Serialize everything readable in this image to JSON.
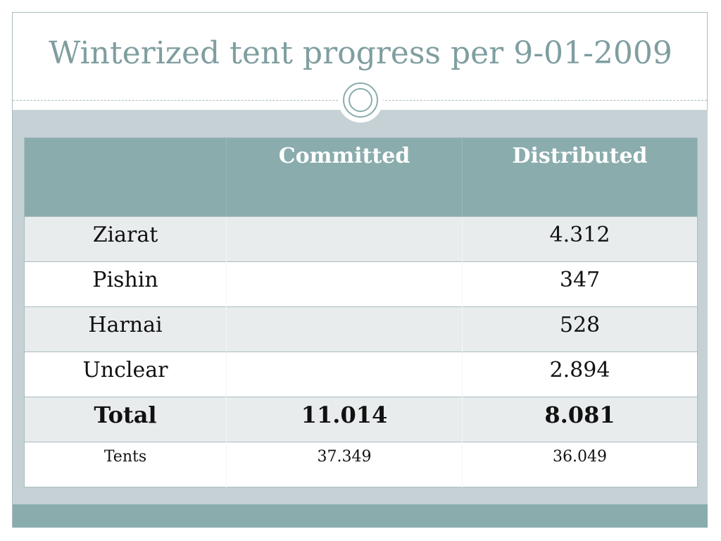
{
  "slide": {
    "title": "Winterized tent progress per 9-01-2009"
  },
  "table": {
    "headers": [
      "",
      "Committed",
      "Distributed"
    ],
    "rows": [
      {
        "label": "Ziarat",
        "committed": "",
        "distributed": "4.312"
      },
      {
        "label": "Pishin",
        "committed": "",
        "distributed": "347"
      },
      {
        "label": "Harnai",
        "committed": "",
        "distributed": "528"
      },
      {
        "label": "Unclear",
        "committed": "",
        "distributed": "2.894"
      },
      {
        "label": "Total",
        "committed": "11.014",
        "distributed": "8.081"
      },
      {
        "label": "Tents",
        "committed": "37.349",
        "distributed": "36.049"
      }
    ]
  },
  "colors": {
    "title": "#7f9ea0",
    "header_bg": "#8aacad",
    "band_bg": "#c5d1d5",
    "row_alt_bg": "#e8eced"
  }
}
